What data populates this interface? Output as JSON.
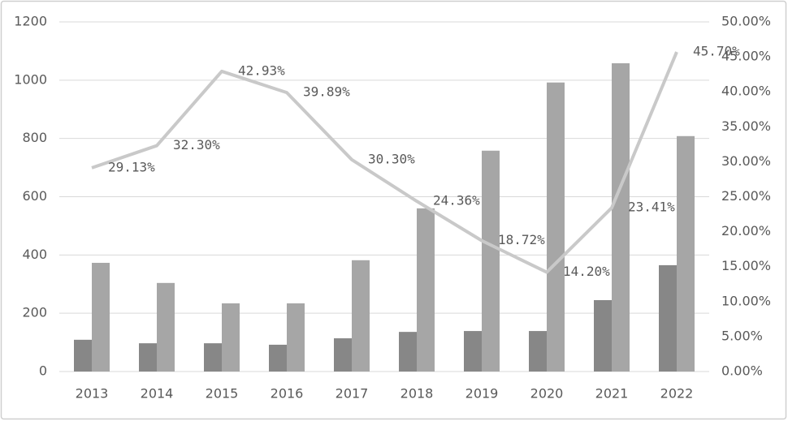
{
  "chart_data": {
    "type": "bar",
    "categories": [
      "2013",
      "2014",
      "2015",
      "2016",
      "2017",
      "2018",
      "2019",
      "2020",
      "2021",
      "2022"
    ],
    "series": [
      {
        "type": "bar",
        "color": "#878787",
        "values": [
          109,
          97,
          97,
          92,
          114,
          136,
          139,
          139,
          245,
          365
        ]
      },
      {
        "type": "bar",
        "color": "#a6a6a6",
        "values": [
          373,
          304,
          234,
          234,
          382,
          560,
          758,
          992,
          1058,
          808
        ]
      },
      {
        "type": "line",
        "axis": "y2",
        "color": "#c9c9c9",
        "values": [
          29.13,
          32.3,
          42.93,
          39.89,
          30.3,
          24.36,
          18.72,
          14.2,
          23.41,
          45.7
        ],
        "value_labels": [
          "29.13%",
          "32.30%",
          "42.93%",
          "39.89%",
          "30.30%",
          "24.36%",
          "18.72%",
          "14.20%",
          "23.41%",
          "45.70%"
        ]
      }
    ],
    "ylim": [
      0,
      1200
    ],
    "yticks": [
      0,
      200,
      400,
      600,
      800,
      1000,
      1200
    ],
    "y2lim": [
      0,
      50
    ],
    "y2ticks": [
      {
        "value": 0,
        "label": "0.00%"
      },
      {
        "value": 5,
        "label": "5.00%"
      },
      {
        "value": 10,
        "label": "10.00%"
      },
      {
        "value": 15,
        "label": "15.00%"
      },
      {
        "value": 20,
        "label": "20.00%"
      },
      {
        "value": 25,
        "label": "25.00%"
      },
      {
        "value": 30,
        "label": "30.00%"
      },
      {
        "value": 35,
        "label": "35.00%"
      },
      {
        "value": 40,
        "label": "40.00%"
      },
      {
        "value": 45,
        "label": "45.00%"
      },
      {
        "value": 50,
        "label": "50.00%"
      }
    ],
    "grid": true
  }
}
